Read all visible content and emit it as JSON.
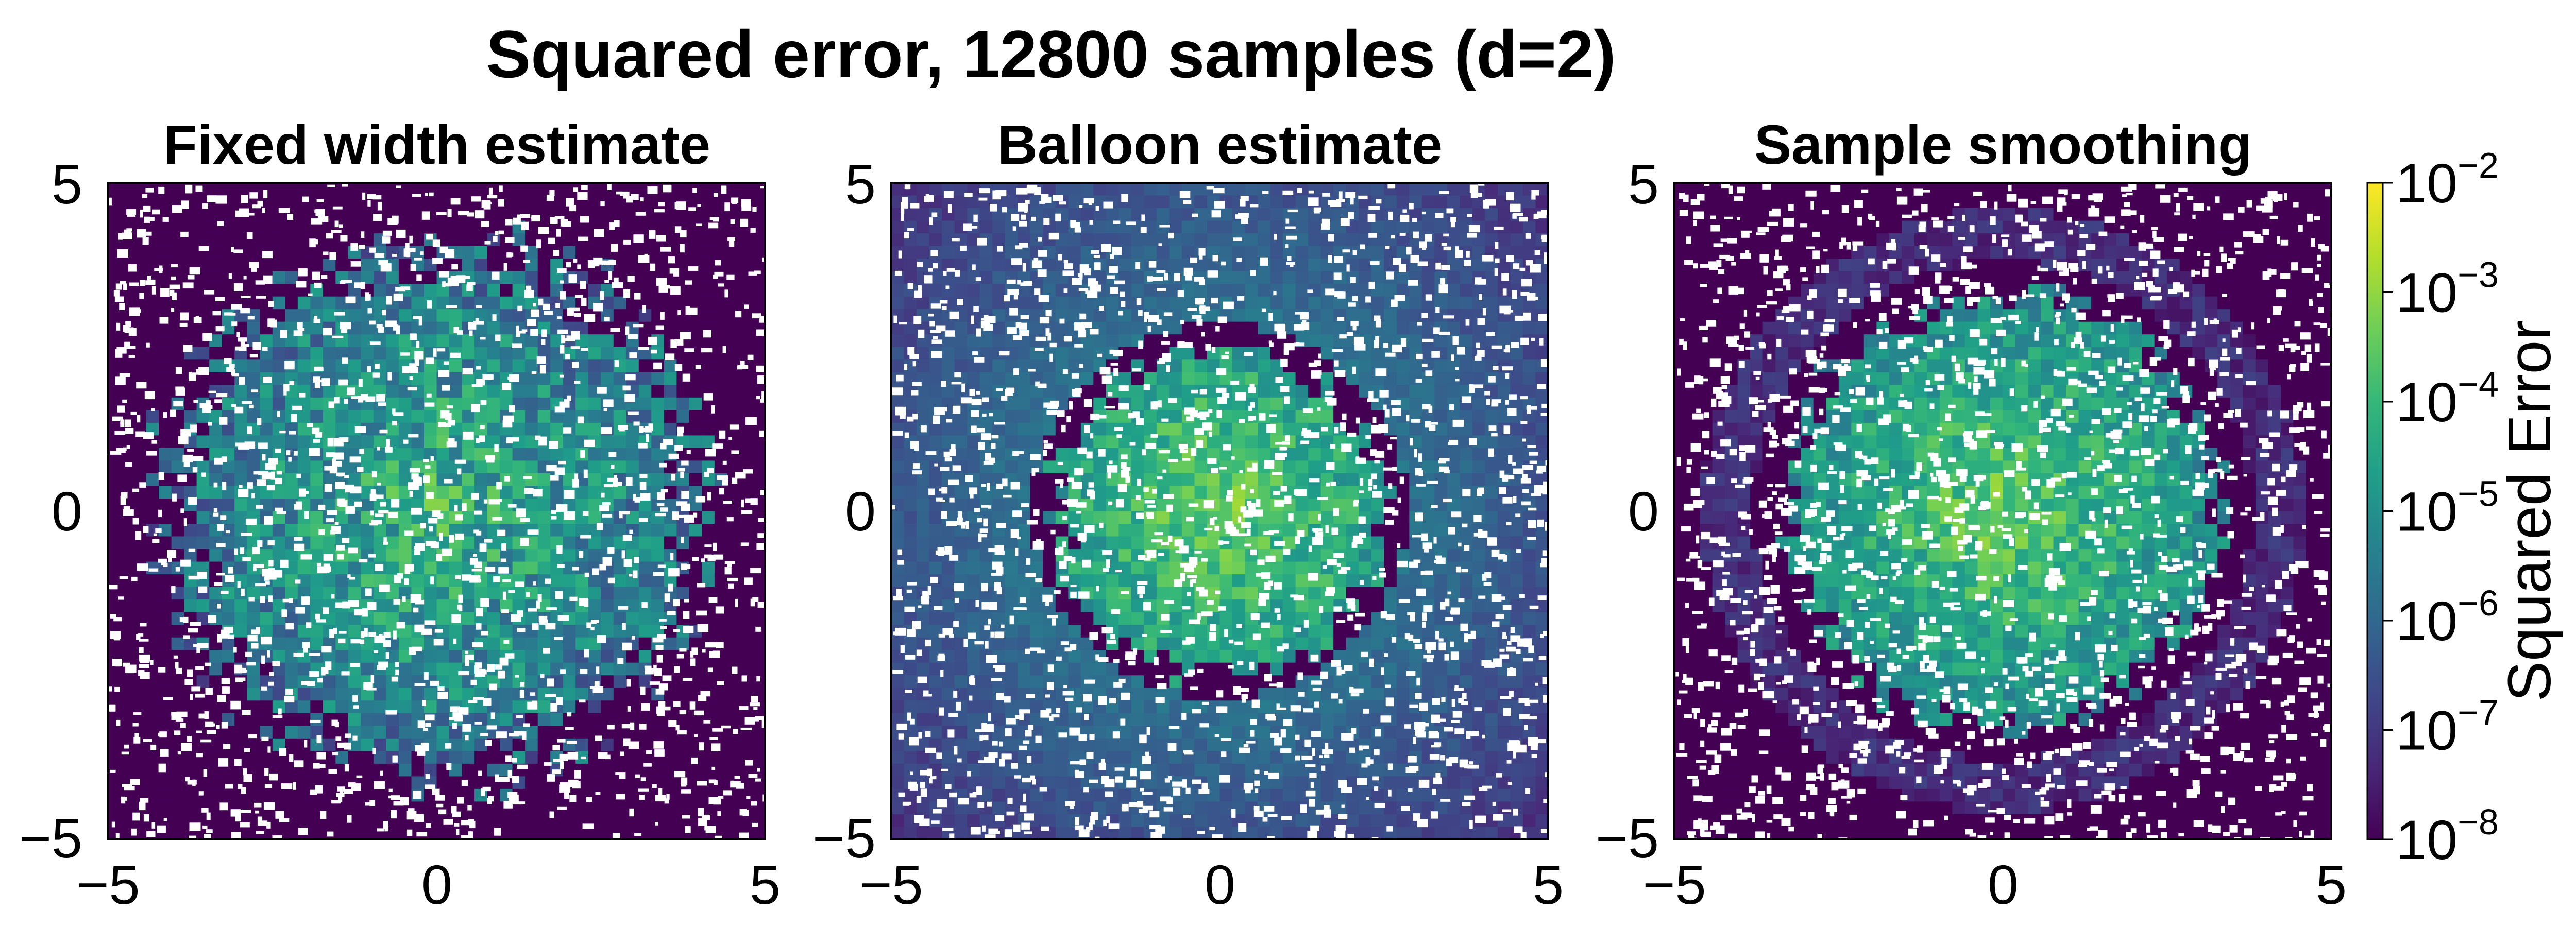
{
  "figure": {
    "title": "Squared error, 12800 samples (d=2)"
  },
  "chart_data": [
    {
      "type": "heatmap",
      "title": "Fixed width estimate",
      "x_ticks": [
        "−5",
        "0",
        "5"
      ],
      "y_ticks": [
        "5",
        "0",
        "−5"
      ],
      "xlim": [
        -5,
        5
      ],
      "ylim": [
        -5,
        5
      ],
      "high_error_region_radius": 4.0,
      "peak_log10_error": -3.0,
      "outside_log10_error": -8.0
    },
    {
      "type": "heatmap",
      "title": "Balloon estimate",
      "x_ticks": [
        "−5",
        "0",
        "5"
      ],
      "y_ticks": [
        "5",
        "0",
        "−5"
      ],
      "xlim": [
        -5,
        5
      ],
      "ylim": [
        -5,
        5
      ],
      "high_error_region_radius": 2.5,
      "peak_log10_error": -2.7,
      "outside_log10_error": -6.5
    },
    {
      "type": "heatmap",
      "title": "Sample smoothing",
      "x_ticks": [
        "−5",
        "0",
        "5"
      ],
      "y_ticks": [
        "5",
        "0",
        "−5"
      ],
      "xlim": [
        -5,
        5
      ],
      "ylim": [
        -5,
        5
      ],
      "high_error_region_radius": 3.3,
      "peak_log10_error": -2.7,
      "outside_log10_error": -8.0
    }
  ],
  "colorbar": {
    "label": "Squared Error",
    "scale": "log",
    "colormap": "viridis",
    "colors": [
      "#440154",
      "#482878",
      "#3e4989",
      "#31688e",
      "#26828e",
      "#1f9e89",
      "#35b779",
      "#6ece58",
      "#b5de2b",
      "#fde725"
    ],
    "tick_exponents": [
      "-2",
      "-3",
      "-4",
      "-5",
      "-6",
      "-7",
      "-8"
    ],
    "tick_base": "10",
    "range_log10": [
      -8,
      -2
    ]
  }
}
